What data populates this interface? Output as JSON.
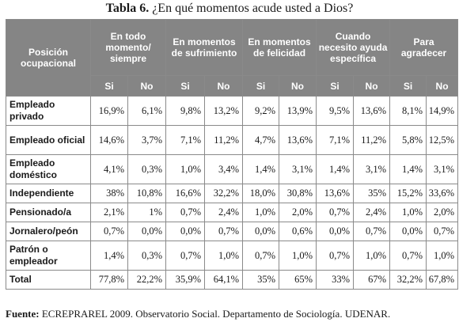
{
  "title": {
    "label": "Tabla 6.",
    "text": "¿En qué momentos acude usted a Dios?"
  },
  "table": {
    "row_header": "Posición ocupacional",
    "groups": [
      "En todo momento/ siempre",
      "En momentos de sufrimiento",
      "En momentos de felicidad",
      "Cuando necesito ayuda específica",
      "Para agradecer"
    ],
    "subheaders": [
      "Si",
      "No",
      "Si",
      "No",
      "Si",
      "No",
      "Si",
      "No",
      "Si",
      "No"
    ],
    "rows": [
      {
        "label": "Empleado privado",
        "values": [
          "16,9%",
          "6,1%",
          "9,8%",
          "13,2%",
          "9,2%",
          "13,9%",
          "9,5%",
          "13,6%",
          "8,1%",
          "14,9%"
        ]
      },
      {
        "label": "Empleado oficial",
        "values": [
          "14,6%",
          "3,7%",
          "7,1%",
          "11,2%",
          "4,7%",
          "13,6%",
          "7,1%",
          "11,2%",
          "5,8%",
          "12,5%"
        ]
      },
      {
        "label": "Empleado doméstico",
        "values": [
          "4,1%",
          "0,3%",
          "1,0%",
          "3,4%",
          "1,4%",
          "3,1%",
          "1,4%",
          "3,1%",
          "1,4%",
          "3,1%"
        ]
      },
      {
        "label": "Independiente",
        "values": [
          "38%",
          "10,8%",
          "16,6%",
          "32,2%",
          "18,0%",
          "30,8%",
          "13,6%",
          "35%",
          "15,2%",
          "33,6%"
        ]
      },
      {
        "label": "Pensionado/a",
        "values": [
          "2,1%",
          "1%",
          "0,7%",
          "2,4%",
          "1,0%",
          "2,0%",
          "0,7%",
          "2,4%",
          "1,0%",
          "2,0%"
        ]
      },
      {
        "label": "Jornalero/peón",
        "values": [
          "0,7%",
          "0,0%",
          "0,0%",
          "0,7%",
          "0,0%",
          "0,6%",
          "0,0%",
          "0,7%",
          "0,0%",
          "0,7%"
        ]
      },
      {
        "label": "Patrón o empleador",
        "values": [
          "1,4%",
          "0,3%",
          "0,7%",
          "1,0%",
          "0,7%",
          "1,0%",
          "0,7%",
          "1,0%",
          "0,7%",
          "1,0%"
        ]
      },
      {
        "label": "Total",
        "values": [
          "77,8%",
          "22,2%",
          "35,9%",
          "64,1%",
          "35%",
          "65%",
          "33%",
          "67%",
          "32,2%",
          "67,8%"
        ]
      }
    ]
  },
  "source": {
    "label": "Fuente:",
    "text": "ECREPRAREL 2009. Observatorio Social. Departamento de Sociología. UDENAR."
  }
}
